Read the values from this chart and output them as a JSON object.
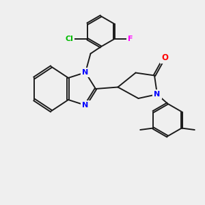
{
  "background_color": "#efefef",
  "bond_color": "#1a1a1a",
  "N_color": "#0000ff",
  "O_color": "#ff0000",
  "Cl_color": "#00bb00",
  "F_color": "#ff00ff",
  "line_width": 1.4,
  "figsize": [
    3.0,
    3.0
  ],
  "dpi": 100,
  "xlim": [
    -2.5,
    3.5
  ],
  "ylim": [
    -3.0,
    2.8
  ]
}
